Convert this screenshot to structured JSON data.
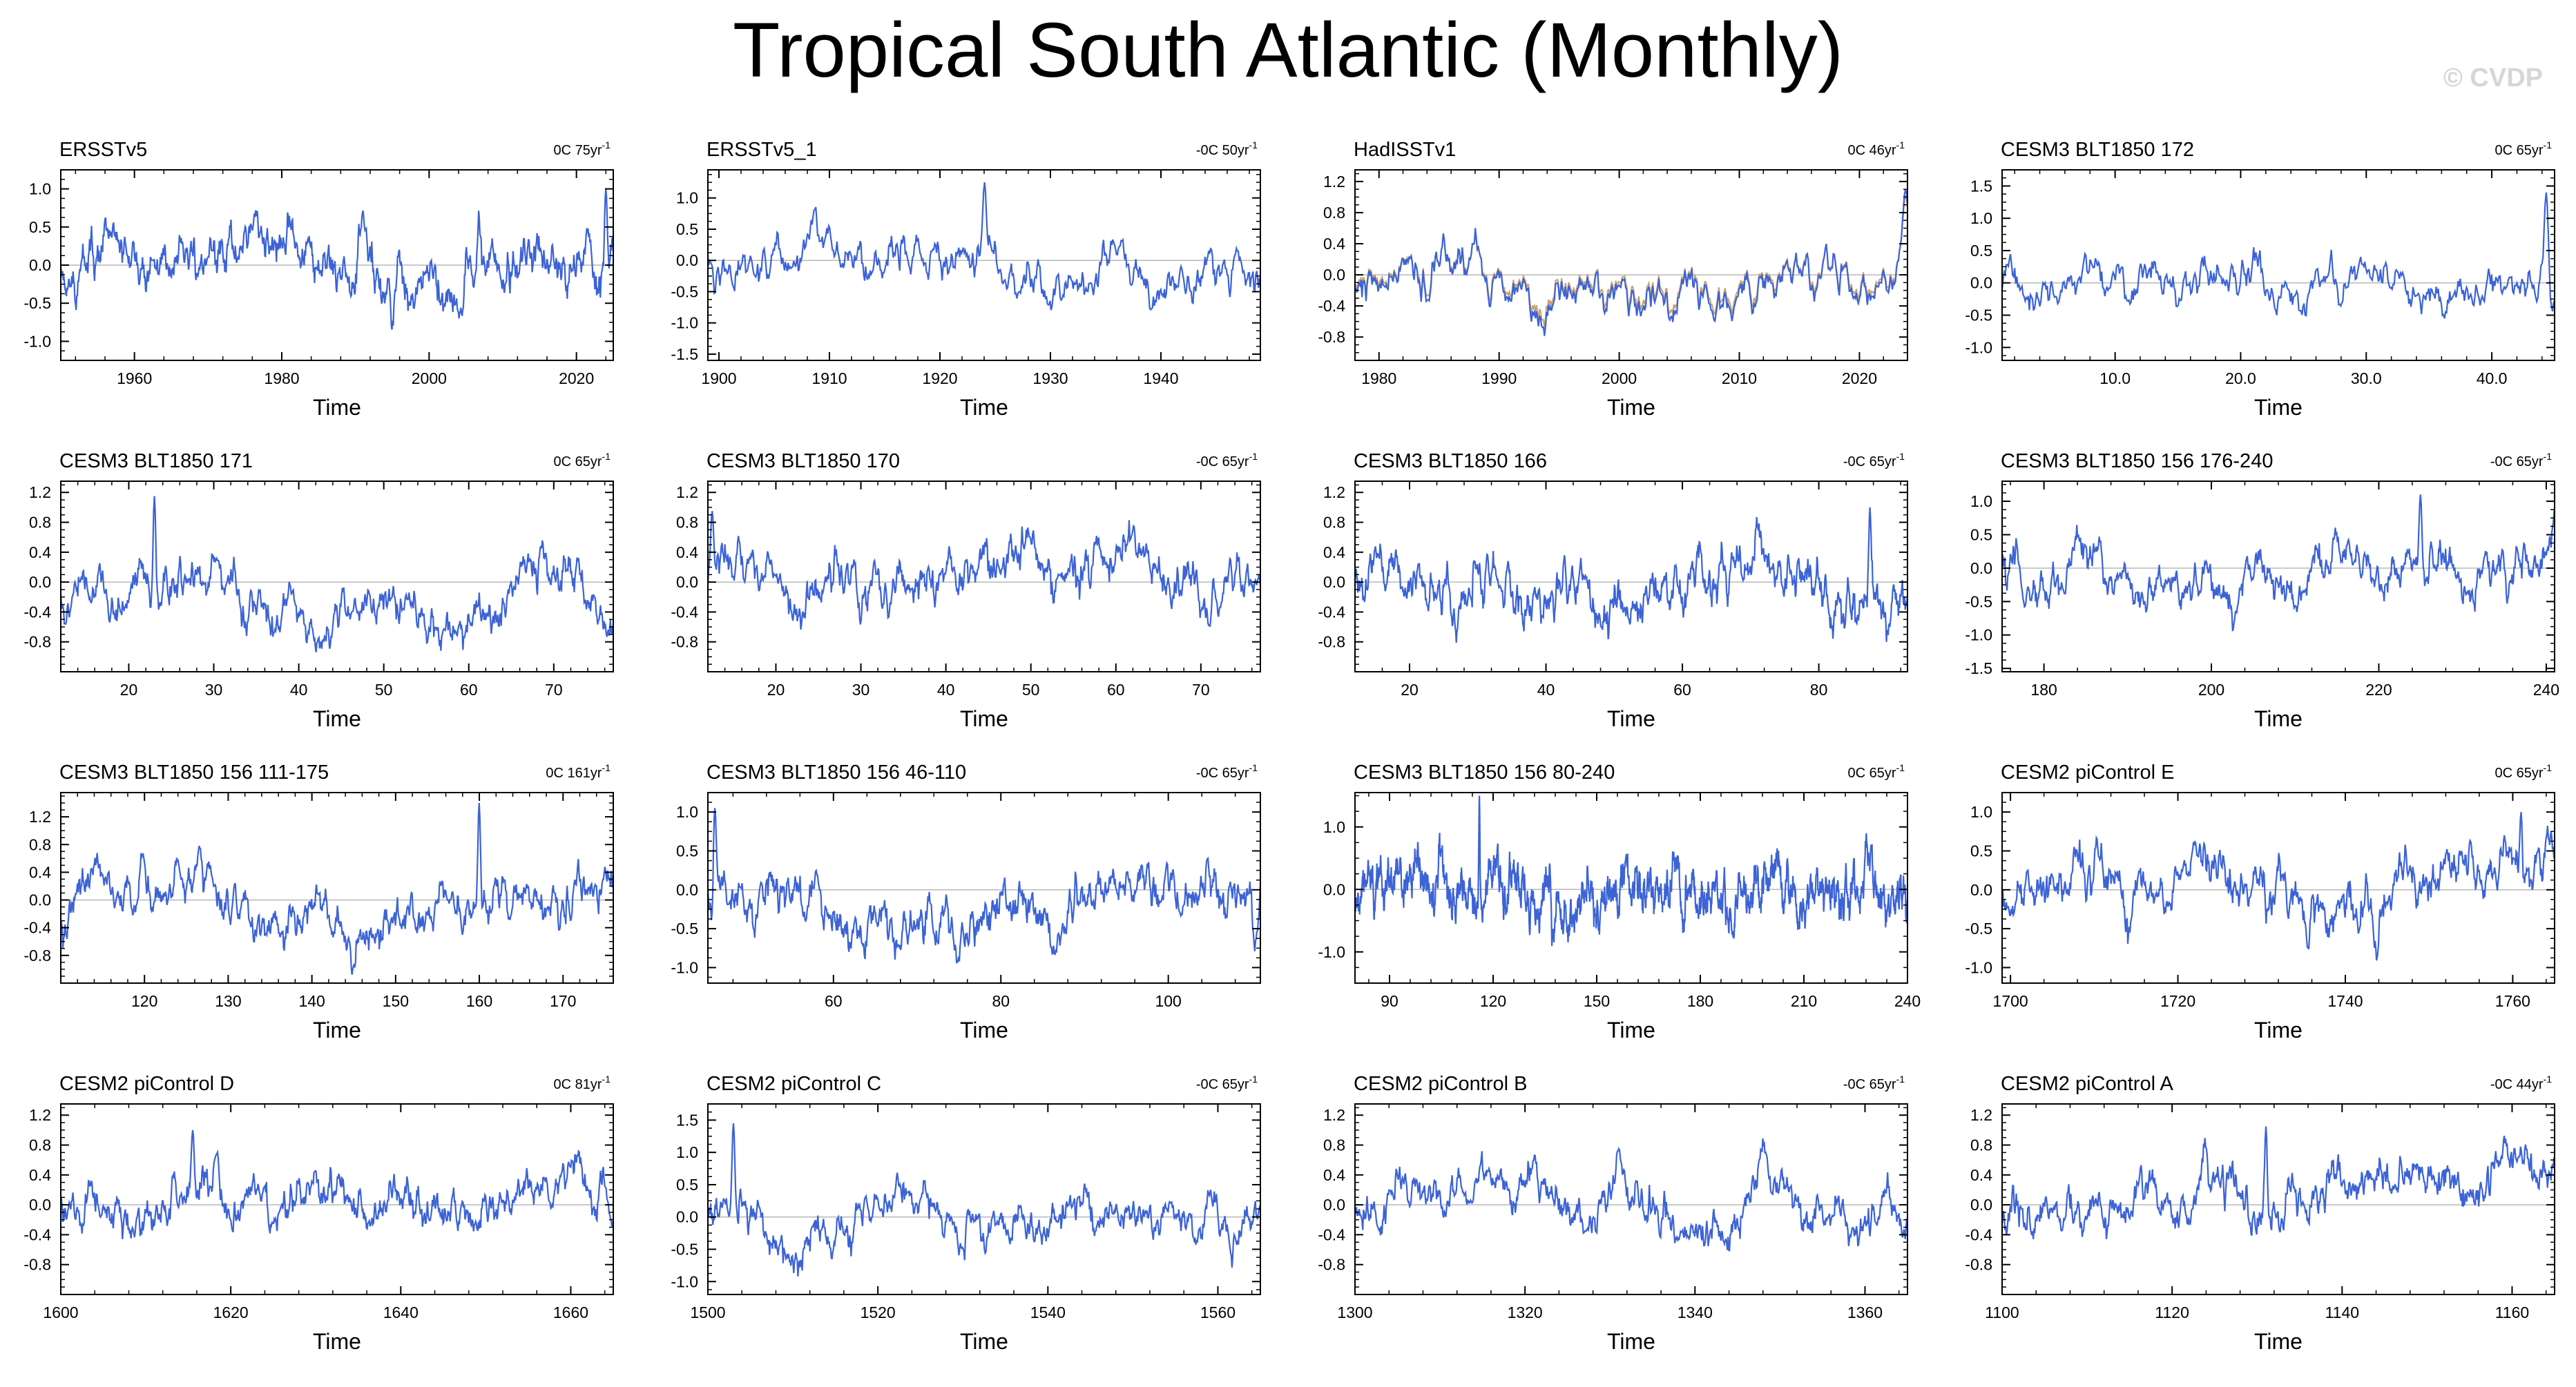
{
  "page": {
    "title": "Tropical South Atlantic (Monthly)",
    "watermark": "© CVDP",
    "colors": {
      "series": "#3c63d6",
      "obs_overlay": "#c8a070",
      "zero_line": "#b8b8b8",
      "axis": "#000000"
    }
  },
  "chart_data": [
    {
      "type": "line",
      "title": "ERSSTv5",
      "trend": "0C 75yr",
      "xlabel": "Time",
      "xlim": [
        1950,
        2025
      ],
      "ylim": [
        -1.25,
        1.25
      ],
      "xticks": [
        1960,
        1980,
        2000,
        2020
      ],
      "xticklabels": [
        "1960",
        "1980",
        "2000",
        "2020"
      ],
      "yticks": [
        -1,
        -0.5,
        0,
        0.5,
        1
      ],
      "yticklabels": [
        "-1.0",
        "-0.5",
        "0.0",
        "0.5",
        "1.0"
      ],
      "amp": 0.32,
      "seed": 11,
      "peak": {
        "x": 2024,
        "y": 1.0
      }
    },
    {
      "type": "line",
      "title": "ERSSTv5_1",
      "trend": "-0C 50yr",
      "xlabel": "Time",
      "xlim": [
        1899,
        1949
      ],
      "ylim": [
        -1.6,
        1.45
      ],
      "xticks": [
        1900,
        1910,
        1920,
        1930,
        1940
      ],
      "xticklabels": [
        "1900",
        "1910",
        "1920",
        "1930",
        "1940"
      ],
      "yticks": [
        -1.5,
        -1,
        -0.5,
        0,
        0.5,
        1
      ],
      "yticklabels": [
        "-1.5",
        "-1.0",
        "-0.5",
        "0.0",
        "0.5",
        "1.0"
      ],
      "amp": 0.38,
      "seed": 23,
      "peak": {
        "x": 1924,
        "y": 1.25
      }
    },
    {
      "type": "line",
      "title": "HadISSTv1",
      "trend": "0C 46yr",
      "xlabel": "Time",
      "xlim": [
        1978,
        2024
      ],
      "ylim": [
        -1.1,
        1.35
      ],
      "xticks": [
        1980,
        1990,
        2000,
        2010,
        2020
      ],
      "xticklabels": [
        "1980",
        "1990",
        "2000",
        "2010",
        "2020"
      ],
      "yticks": [
        -0.8,
        -0.4,
        0,
        0.4,
        0.8,
        1.2
      ],
      "yticklabels": [
        "-0.8",
        "-0.4",
        "0.0",
        "0.4",
        "0.8",
        "1.2"
      ],
      "amp": 0.3,
      "seed": 37,
      "overlay": true,
      "peak": {
        "x": 2023.8,
        "y": 1.1
      }
    },
    {
      "type": "line",
      "title": "CESM3 BLT1850 172",
      "trend": "0C 65yr",
      "xlabel": "Time",
      "xlim": [
        1,
        45
      ],
      "ylim": [
        -1.2,
        1.75
      ],
      "xticks": [
        10,
        20,
        30,
        40
      ],
      "xticklabels": [
        "10.0",
        "20.0",
        "30.0",
        "40.0"
      ],
      "yticks": [
        -1,
        -0.5,
        0,
        0.5,
        1,
        1.5
      ],
      "yticklabels": [
        "-1.0",
        "-0.5",
        "0.0",
        "0.5",
        "1.0",
        "1.5"
      ],
      "amp": 0.33,
      "seed": 41,
      "peak": {
        "x": 44.3,
        "y": 1.4
      }
    },
    {
      "type": "line",
      "title": "CESM3 BLT1850 171",
      "trend": "0C 65yr",
      "xlabel": "Time",
      "xlim": [
        12,
        77
      ],
      "ylim": [
        -1.2,
        1.35
      ],
      "xticks": [
        20,
        30,
        40,
        50,
        60,
        70
      ],
      "xticklabels": [
        "20",
        "30",
        "40",
        "50",
        "60",
        "70"
      ],
      "yticks": [
        -0.8,
        -0.4,
        0,
        0.4,
        0.8,
        1.2
      ],
      "yticklabels": [
        "-0.8",
        "-0.4",
        "0.0",
        "0.4",
        "0.8",
        "1.2"
      ],
      "amp": 0.3,
      "seed": 53,
      "peak": {
        "x": 23,
        "y": 1.15
      }
    },
    {
      "type": "line",
      "title": "CESM3 BLT1850 170",
      "trend": "-0C 65yr",
      "xlabel": "Time",
      "xlim": [
        12,
        77
      ],
      "ylim": [
        -1.2,
        1.35
      ],
      "xticks": [
        20,
        30,
        40,
        50,
        60,
        70
      ],
      "xticklabels": [
        "20",
        "30",
        "40",
        "50",
        "60",
        "70"
      ],
      "yticks": [
        -0.8,
        -0.4,
        0,
        0.4,
        0.8,
        1.2
      ],
      "yticklabels": [
        "-0.8",
        "-0.4",
        "0.0",
        "0.4",
        "0.8",
        "1.2"
      ],
      "amp": 0.33,
      "seed": 61,
      "peak": {
        "x": 12.5,
        "y": 0.95
      }
    },
    {
      "type": "line",
      "title": "CESM3 BLT1850 166",
      "trend": "-0C 65yr",
      "xlabel": "Time",
      "xlim": [
        12,
        93
      ],
      "ylim": [
        -1.2,
        1.35
      ],
      "xticks": [
        20,
        40,
        60,
        80
      ],
      "xticklabels": [
        "20",
        "40",
        "60",
        "80"
      ],
      "yticks": [
        -0.8,
        -0.4,
        0,
        0.4,
        0.8,
        1.2
      ],
      "yticklabels": [
        "-0.8",
        "-0.4",
        "0.0",
        "0.4",
        "0.8",
        "1.2"
      ],
      "amp": 0.33,
      "seed": 73,
      "peak": {
        "x": 87.5,
        "y": 1.0
      }
    },
    {
      "type": "line",
      "title": "CESM3 BLT1850 156 176-240",
      "trend": "-0C 65yr",
      "xlabel": "Time",
      "xlim": [
        175,
        241
      ],
      "ylim": [
        -1.55,
        1.3
      ],
      "xticks": [
        180,
        200,
        220,
        240
      ],
      "xticklabels": [
        "180",
        "200",
        "220",
        "240"
      ],
      "yticks": [
        -1.5,
        -1,
        -0.5,
        0,
        0.5,
        1
      ],
      "yticklabels": [
        "-1.5",
        "-1.0",
        "-0.5",
        "0.0",
        "0.5",
        "1.0"
      ],
      "amp": 0.36,
      "seed": 83,
      "peak": {
        "x": 225,
        "y": 1.1
      }
    },
    {
      "type": "line",
      "title": "CESM3 BLT1850 156 111-175",
      "trend": "0C 161yr",
      "xlabel": "Time",
      "xlim": [
        110,
        176
      ],
      "ylim": [
        -1.2,
        1.55
      ],
      "xticks": [
        120,
        130,
        140,
        150,
        160,
        170
      ],
      "xticklabels": [
        "120",
        "130",
        "140",
        "150",
        "160",
        "170"
      ],
      "yticks": [
        -0.8,
        -0.4,
        0,
        0.4,
        0.8,
        1.2
      ],
      "yticklabels": [
        "-0.8",
        "-0.4",
        "0.0",
        "0.4",
        "0.8",
        "1.2"
      ],
      "amp": 0.33,
      "seed": 97,
      "peak": {
        "x": 160,
        "y": 1.4
      }
    },
    {
      "type": "line",
      "title": "CESM3 BLT1850 156 46-110",
      "trend": "-0C 65yr",
      "xlabel": "Time",
      "xlim": [
        45,
        111
      ],
      "ylim": [
        -1.2,
        1.25
      ],
      "xticks": [
        60,
        80,
        100
      ],
      "xticklabels": [
        "60",
        "80",
        "100"
      ],
      "yticks": [
        -1,
        -0.5,
        0,
        0.5,
        1
      ],
      "yticklabels": [
        "-1.0",
        "-0.5",
        "0.0",
        "0.5",
        "1.0"
      ],
      "amp": 0.35,
      "seed": 101,
      "peak": {
        "x": 45.8,
        "y": 1.05
      }
    },
    {
      "type": "line",
      "title": "CESM3 BLT1850 156 80-240",
      "trend": "0C 65yr",
      "xlabel": "Time",
      "xlim": [
        80,
        240
      ],
      "ylim": [
        -1.5,
        1.55
      ],
      "xticks": [
        90,
        120,
        150,
        180,
        210,
        240
      ],
      "xticklabels": [
        "90",
        "120",
        "150",
        "180",
        "210",
        "240"
      ],
      "yticks": [
        -1,
        0,
        1
      ],
      "yticklabels": [
        "-1.0",
        "0.0",
        "1.0"
      ],
      "amp": 0.4,
      "seed": 113,
      "peak": {
        "x": 116,
        "y": 1.5
      }
    },
    {
      "type": "line",
      "title": "CESM2 piControl E",
      "trend": "0C 65yr",
      "xlabel": "Time",
      "xlim": [
        1699,
        1765
      ],
      "ylim": [
        -1.2,
        1.25
      ],
      "xticks": [
        1700,
        1720,
        1740,
        1760
      ],
      "xticklabels": [
        "1700",
        "1720",
        "1740",
        "1760"
      ],
      "yticks": [
        -1,
        -0.5,
        0,
        0.5,
        1
      ],
      "yticklabels": [
        "-1.0",
        "-0.5",
        "0.0",
        "0.5",
        "1.0"
      ],
      "amp": 0.36,
      "seed": 127,
      "peak": {
        "x": 1761,
        "y": 1.0
      }
    },
    {
      "type": "line",
      "title": "CESM2 piControl D",
      "trend": "0C 81yr",
      "xlabel": "Time",
      "xlim": [
        1600,
        1665
      ],
      "ylim": [
        -1.2,
        1.35
      ],
      "xticks": [
        1600,
        1620,
        1640,
        1660
      ],
      "xticklabels": [
        "1600",
        "1620",
        "1640",
        "1660"
      ],
      "yticks": [
        -0.8,
        -0.4,
        0,
        0.4,
        0.8,
        1.2
      ],
      "yticklabels": [
        "-0.8",
        "-0.4",
        "0.0",
        "0.4",
        "0.8",
        "1.2"
      ],
      "amp": 0.3,
      "seed": 131,
      "peak": {
        "x": 1615.5,
        "y": 1.0
      }
    },
    {
      "type": "line",
      "title": "CESM2 piControl C",
      "trend": "-0C 65yr",
      "xlabel": "Time",
      "xlim": [
        1500,
        1565
      ],
      "ylim": [
        -1.2,
        1.75
      ],
      "xticks": [
        1500,
        1520,
        1540,
        1560
      ],
      "xticklabels": [
        "1500",
        "1520",
        "1540",
        "1560"
      ],
      "yticks": [
        -1,
        -0.5,
        0,
        0.5,
        1,
        1.5
      ],
      "yticklabels": [
        "-1.0",
        "-0.5",
        "0.0",
        "0.5",
        "1.0",
        "1.5"
      ],
      "amp": 0.33,
      "seed": 139,
      "peak": {
        "x": 1503,
        "y": 1.45
      }
    },
    {
      "type": "line",
      "title": "CESM2 piControl B",
      "trend": "-0C 65yr",
      "xlabel": "Time",
      "xlim": [
        1300,
        1365
      ],
      "ylim": [
        -1.2,
        1.35
      ],
      "xticks": [
        1300,
        1320,
        1340,
        1360
      ],
      "xticklabels": [
        "1300",
        "1320",
        "1340",
        "1360"
      ],
      "yticks": [
        -0.8,
        -0.4,
        0,
        0.4,
        0.8,
        1.2
      ],
      "yticklabels": [
        "-0.8",
        "-0.4",
        "0.0",
        "0.4",
        "0.8",
        "1.2"
      ],
      "amp": 0.3,
      "seed": 149,
      "peak": {
        "x": 1331,
        "y": 0.75
      }
    },
    {
      "type": "line",
      "title": "CESM2 piControl A",
      "trend": "-0C 44yr",
      "xlabel": "Time",
      "xlim": [
        1100,
        1165
      ],
      "ylim": [
        -1.2,
        1.35
      ],
      "xticks": [
        1100,
        1120,
        1140,
        1160
      ],
      "xticklabels": [
        "1100",
        "1120",
        "1140",
        "1160"
      ],
      "yticks": [
        -0.8,
        -0.4,
        0,
        0.4,
        0.8,
        1.2
      ],
      "yticklabels": [
        "-0.8",
        "-0.4",
        "0.0",
        "0.4",
        "0.8",
        "1.2"
      ],
      "amp": 0.3,
      "seed": 157,
      "peak": {
        "x": 1131,
        "y": 1.05
      }
    }
  ]
}
